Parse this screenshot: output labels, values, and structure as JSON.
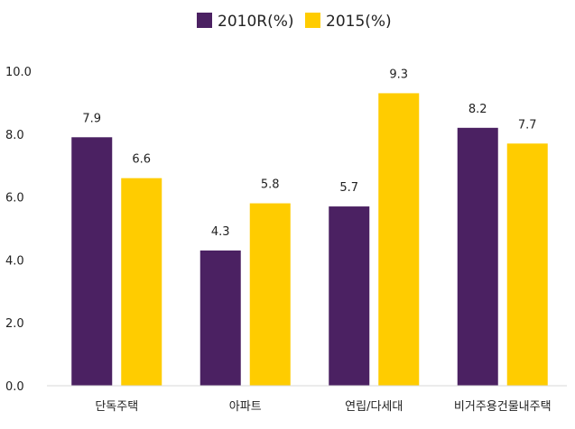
{
  "chart_data": {
    "type": "bar",
    "categories": [
      "단독주택",
      "아파트",
      "연립/다세대",
      "비거주용건물내주택"
    ],
    "series": [
      {
        "name": "2010R(%)",
        "values": [
          7.9,
          4.3,
          5.7,
          8.2
        ],
        "color": "#4b2162"
      },
      {
        "name": "2015(%)",
        "values": [
          6.6,
          5.8,
          9.3,
          7.7
        ],
        "color": "#ffcc00"
      }
    ],
    "y_ticks": [
      "0.0",
      "2.0",
      "4.0",
      "6.0",
      "8.0",
      "10.0"
    ],
    "ylim": [
      0,
      10
    ],
    "grid": false,
    "legend_position": "top-center",
    "data_labels": true
  }
}
